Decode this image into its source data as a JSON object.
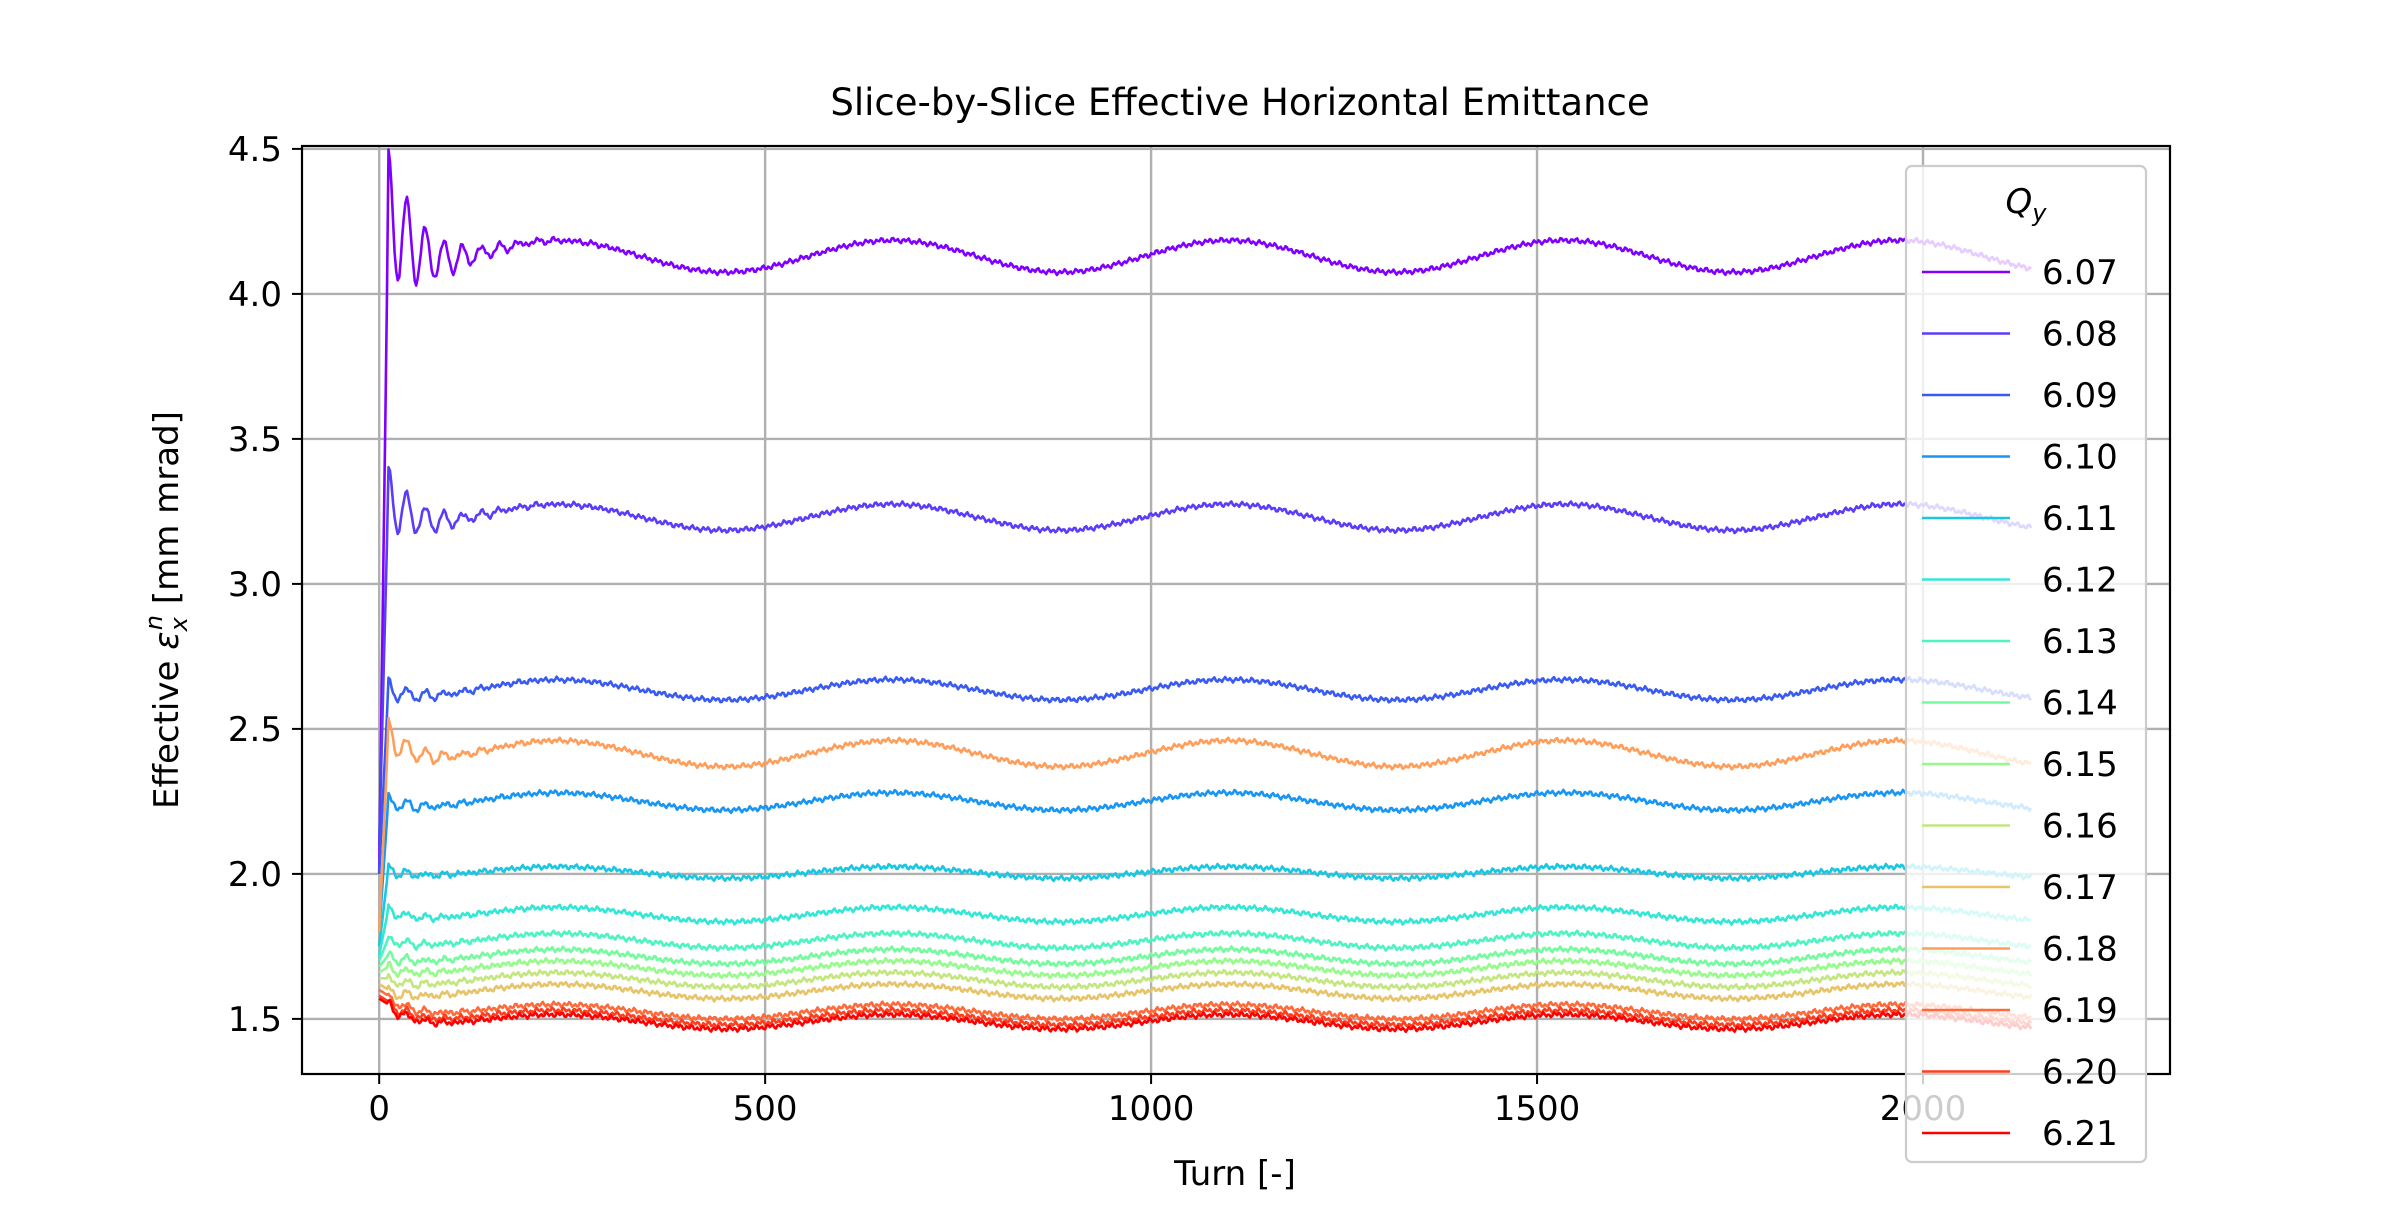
{
  "chart_data": {
    "type": "line",
    "title": "Slice-by-Slice Effective Horizontal Emittance",
    "xlabel": "Turn [-]",
    "ylabel_prefix": "Effective ",
    "ylabel_symbol": "ε",
    "ylabel_sub": "x",
    "ylabel_sup": "n",
    "ylabel_suffix": " [mm mrad]",
    "xlim": [
      -100,
      2320
    ],
    "ylim": [
      1.31,
      4.51
    ],
    "xticks": [
      0,
      500,
      1000,
      1500,
      2000
    ],
    "xtick_labels": [
      "0",
      "500",
      "1000",
      "1500",
      "2000"
    ],
    "yticks": [
      1.5,
      2.0,
      2.5,
      3.0,
      3.5,
      4.0,
      4.5
    ],
    "ytick_labels": [
      "1.5",
      "2.0",
      "2.5",
      "3.0",
      "3.5",
      "4.0",
      "4.5"
    ],
    "grid": true,
    "legend": {
      "placement": "right",
      "title_symbol": "Q",
      "title_sub": "y"
    },
    "x_range": [
      0,
      2140
    ],
    "oscillation_period_turns": 435,
    "series": [
      {
        "name": "6.07",
        "color": "#8000ff",
        "plateau": 4.13,
        "amplitude": 0.055,
        "initial": 2.0,
        "first_peak": 4.37,
        "ripple": 0.25
      },
      {
        "name": "6.08",
        "color": "#5a3df9",
        "plateau": 3.23,
        "amplitude": 0.045,
        "initial": 2.1,
        "first_peak": 3.34,
        "ripple": 0.12
      },
      {
        "name": "6.09",
        "color": "#3a5bf3",
        "plateau": 2.635,
        "amplitude": 0.035,
        "initial": 2.0,
        "first_peak": 2.65,
        "ripple": 0.04
      },
      {
        "name": "6.10",
        "color": "#1996f3",
        "plateau": 2.25,
        "amplitude": 0.03,
        "initial": 1.8,
        "first_peak": 2.26,
        "ripple": 0.03
      },
      {
        "name": "6.11",
        "color": "#1ac7e3",
        "plateau": 2.005,
        "amplitude": 0.02,
        "initial": 1.75,
        "first_peak": 2.02,
        "ripple": 0.02
      },
      {
        "name": "6.12",
        "color": "#33e6d6",
        "plateau": 1.86,
        "amplitude": 0.025,
        "initial": 1.72,
        "first_peak": 1.88,
        "ripple": 0.02
      },
      {
        "name": "6.13",
        "color": "#4df3c0",
        "plateau": 1.77,
        "amplitude": 0.025,
        "initial": 1.7,
        "first_peak": 1.78,
        "ripple": 0.02
      },
      {
        "name": "6.14",
        "color": "#73fb9e",
        "plateau": 1.715,
        "amplitude": 0.025,
        "initial": 1.68,
        "first_peak": 1.72,
        "ripple": 0.02
      },
      {
        "name": "6.15",
        "color": "#96fb8c",
        "plateau": 1.675,
        "amplitude": 0.025,
        "initial": 1.66,
        "first_peak": 1.68,
        "ripple": 0.02
      },
      {
        "name": "6.16",
        "color": "#c4e680",
        "plateau": 1.635,
        "amplitude": 0.025,
        "initial": 1.64,
        "first_peak": 1.64,
        "ripple": 0.02
      },
      {
        "name": "6.17",
        "color": "#e6c46a",
        "plateau": 1.595,
        "amplitude": 0.025,
        "initial": 1.62,
        "first_peak": 1.6,
        "ripple": 0.02
      },
      {
        "name": "6.18",
        "color": "#ff9e5a",
        "plateau": 2.415,
        "amplitude": 0.045,
        "initial": 1.8,
        "first_peak": 2.5,
        "ripple": 0.06
      },
      {
        "name": "6.19",
        "color": "#ff6a3b",
        "plateau": 1.525,
        "amplitude": 0.025,
        "initial": 1.6,
        "first_peak": 1.58,
        "ripple": 0.02
      },
      {
        "name": "6.20",
        "color": "#ff3d1f",
        "plateau": 1.505,
        "amplitude": 0.025,
        "initial": 1.58,
        "first_peak": 1.56,
        "ripple": 0.02
      },
      {
        "name": "6.21",
        "color": "#ff0000",
        "plateau": 1.49,
        "amplitude": 0.025,
        "initial": 1.57,
        "first_peak": 1.55,
        "ripple": 0.02
      }
    ]
  }
}
